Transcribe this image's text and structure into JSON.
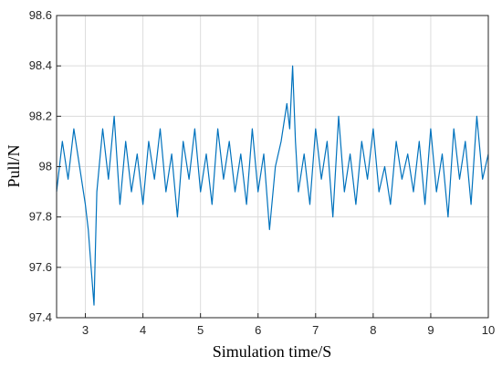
{
  "chart_data": {
    "type": "line",
    "xlabel": "Simulation time/S",
    "ylabel": "Pull/N",
    "xlim": [
      2.5,
      10
    ],
    "ylim": [
      97.4,
      98.6
    ],
    "xticks": [
      "3",
      "4",
      "5",
      "6",
      "7",
      "8",
      "9",
      "10"
    ],
    "yticks": [
      "97.4",
      "97.6",
      "97.8",
      "98",
      "98.2",
      "98.4",
      "98.6"
    ],
    "grid": true,
    "series": [
      {
        "color": "#0072BD",
        "x": [
          2.5,
          2.6,
          2.7,
          2.8,
          2.9,
          3.0,
          3.05,
          3.1,
          3.15,
          3.2,
          3.3,
          3.4,
          3.5,
          3.6,
          3.7,
          3.8,
          3.9,
          4.0,
          4.1,
          4.2,
          4.3,
          4.4,
          4.5,
          4.6,
          4.7,
          4.8,
          4.9,
          5.0,
          5.1,
          5.2,
          5.3,
          5.4,
          5.5,
          5.6,
          5.7,
          5.8,
          5.9,
          6.0,
          6.1,
          6.2,
          6.3,
          6.4,
          6.5,
          6.55,
          6.6,
          6.65,
          6.7,
          6.8,
          6.9,
          7.0,
          7.1,
          7.2,
          7.3,
          7.4,
          7.5,
          7.6,
          7.7,
          7.8,
          7.9,
          8.0,
          8.1,
          8.2,
          8.3,
          8.4,
          8.5,
          8.6,
          8.7,
          8.8,
          8.9,
          9.0,
          9.1,
          9.2,
          9.3,
          9.4,
          9.5,
          9.6,
          9.7,
          9.8,
          9.9,
          10.0
        ],
        "y": [
          97.9,
          98.1,
          97.95,
          98.15,
          98.0,
          97.85,
          97.75,
          97.6,
          97.45,
          97.9,
          98.15,
          97.95,
          98.2,
          97.85,
          98.1,
          97.9,
          98.05,
          97.85,
          98.1,
          97.95,
          98.15,
          97.9,
          98.05,
          97.8,
          98.1,
          97.95,
          98.15,
          97.9,
          98.05,
          97.85,
          98.15,
          97.95,
          98.1,
          97.9,
          98.05,
          97.85,
          98.15,
          97.9,
          98.05,
          97.75,
          98.0,
          98.1,
          98.25,
          98.15,
          98.4,
          98.1,
          97.9,
          98.05,
          97.85,
          98.15,
          97.95,
          98.1,
          97.8,
          98.2,
          97.9,
          98.05,
          97.85,
          98.1,
          97.95,
          98.15,
          97.9,
          98.0,
          97.85,
          98.1,
          97.95,
          98.05,
          97.9,
          98.1,
          97.85,
          98.15,
          97.9,
          98.05,
          97.8,
          98.15,
          97.95,
          98.1,
          97.85,
          98.2,
          97.95,
          98.05
        ]
      }
    ]
  }
}
